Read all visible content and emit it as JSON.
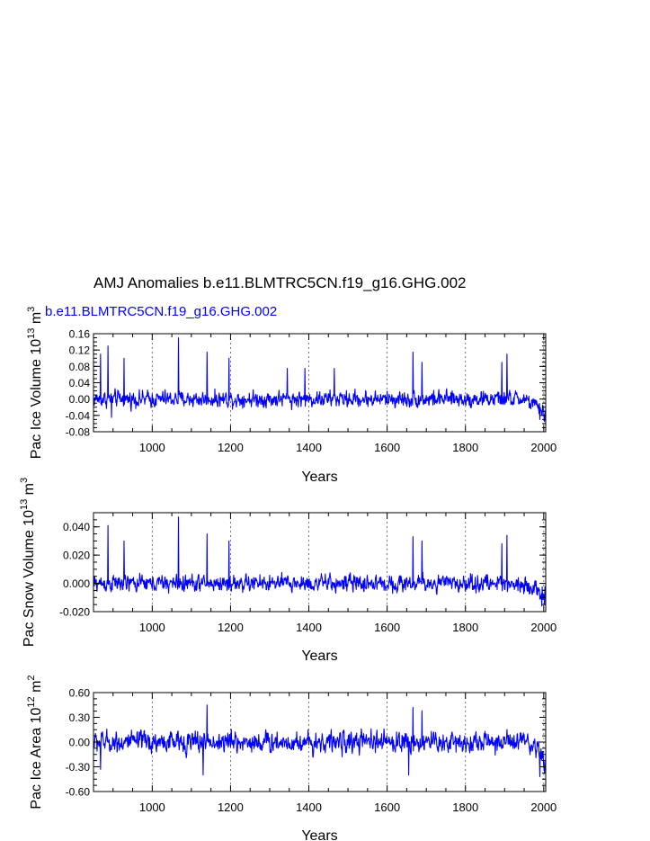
{
  "figure": {
    "title": "AMJ Anomalies b.e11.BLMTRC5CN.f19_g16.GHG.002",
    "case_label": "b.e11.BLMTRC5CN.f19_g16.GHG.002",
    "series_color": "#0000ff"
  },
  "chart_data": [
    {
      "type": "line",
      "name": "pac-ice-volume",
      "ylabel_main": "Pac Ice Volume 10",
      "ylabel_sup": "13",
      "ylabel_unit": " m",
      "ylabel_unit_sup": "3",
      "xlabel": "Years",
      "xlim": [
        850,
        2005
      ],
      "ylim": [
        -0.08,
        0.16
      ],
      "xticks": [
        1000,
        1200,
        1400,
        1600,
        1800,
        2000
      ],
      "xtick_labels": [
        "1000",
        "1200",
        "1400",
        "1600",
        "1800",
        "2000"
      ],
      "yticks": [
        -0.08,
        -0.04,
        0.0,
        0.04,
        0.08,
        0.12,
        0.16
      ],
      "ytick_labels": [
        "-0.08",
        "-0.04",
        "0.00",
        "0.04",
        "0.08",
        "0.12",
        "0.16"
      ],
      "yminor": 0.01,
      "grid": "vertical-dashed-at-xticks",
      "noise_amp": 0.02,
      "spikes": [
        [
          868,
          0.11
        ],
        [
          887,
          0.13
        ],
        [
          896,
          -0.045
        ],
        [
          928,
          0.1
        ],
        [
          1067,
          0.15
        ],
        [
          1140,
          0.115
        ],
        [
          1196,
          0.1
        ],
        [
          1345,
          0.075
        ],
        [
          1390,
          0.075
        ],
        [
          1465,
          0.075
        ],
        [
          1666,
          0.115
        ],
        [
          1689,
          0.09
        ],
        [
          1893,
          0.09
        ],
        [
          1906,
          0.11
        ],
        [
          1990,
          -0.05
        ],
        [
          1996,
          -0.04
        ],
        [
          2002,
          -0.055
        ]
      ],
      "trend": [
        [
          850,
          0.0
        ],
        [
          1700,
          0.0
        ],
        [
          1950,
          0.0
        ],
        [
          1975,
          -0.015
        ],
        [
          2005,
          -0.035
        ]
      ]
    },
    {
      "type": "line",
      "name": "pac-snow-volume",
      "ylabel_main": "Pac Snow Volume 10",
      "ylabel_sup": "13",
      "ylabel_unit": " m",
      "ylabel_unit_sup": "3",
      "xlabel": "Years",
      "xlim": [
        850,
        2005
      ],
      "ylim": [
        -0.02,
        0.05
      ],
      "xticks": [
        1000,
        1200,
        1400,
        1600,
        1800,
        2000
      ],
      "xtick_labels": [
        "1000",
        "1200",
        "1400",
        "1600",
        "1800",
        "2000"
      ],
      "yticks": [
        -0.02,
        0.0,
        0.02,
        0.04
      ],
      "ytick_labels": [
        "-0.020",
        "0.000",
        "0.020",
        "0.040"
      ],
      "yminor": 0.005,
      "grid": "vertical-dashed-at-xticks",
      "noise_amp": 0.006,
      "spikes": [
        [
          887,
          0.041
        ],
        [
          928,
          0.03
        ],
        [
          1067,
          0.047
        ],
        [
          1140,
          0.035
        ],
        [
          1196,
          0.03
        ],
        [
          1666,
          0.033
        ],
        [
          1689,
          0.03
        ],
        [
          1893,
          0.028
        ],
        [
          1906,
          0.034
        ],
        [
          1995,
          -0.016
        ],
        [
          2002,
          -0.015
        ]
      ],
      "trend": [
        [
          850,
          0.0
        ],
        [
          1950,
          0.0
        ],
        [
          1975,
          -0.004
        ],
        [
          2005,
          -0.009
        ]
      ]
    },
    {
      "type": "line",
      "name": "pac-ice-area",
      "ylabel_main": "Pac Ice Area 10",
      "ylabel_sup": "12",
      "ylabel_unit": " m",
      "ylabel_unit_sup": "2",
      "xlabel": "Years",
      "xlim": [
        850,
        2005
      ],
      "ylim": [
        -0.6,
        0.6
      ],
      "xticks": [
        1000,
        1200,
        1400,
        1600,
        1800,
        2000
      ],
      "xtick_labels": [
        "1000",
        "1200",
        "1400",
        "1600",
        "1800",
        "2000"
      ],
      "yticks": [
        -0.6,
        -0.3,
        0.0,
        0.3,
        0.6
      ],
      "ytick_labels": [
        "-0.60",
        "-0.30",
        "0.00",
        "0.30",
        "0.60"
      ],
      "yminor": 0.075,
      "grid": "vertical-dashed-at-xticks",
      "noise_amp": 0.13,
      "spikes": [
        [
          868,
          -0.33
        ],
        [
          1140,
          0.45
        ],
        [
          1130,
          -0.4
        ],
        [
          1655,
          -0.4
        ],
        [
          1666,
          0.42
        ],
        [
          1689,
          0.38
        ],
        [
          1990,
          -0.42
        ],
        [
          2002,
          -0.38
        ]
      ],
      "trend": [
        [
          850,
          0.0
        ],
        [
          1950,
          0.0
        ],
        [
          1975,
          -0.1
        ],
        [
          2005,
          -0.2
        ]
      ]
    }
  ]
}
